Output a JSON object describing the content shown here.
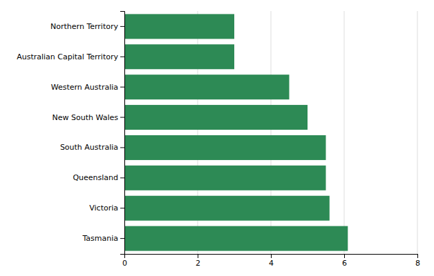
{
  "chart_data": {
    "type": "bar",
    "orientation": "horizontal",
    "categories": [
      "Tasmania",
      "Victoria",
      "Queensland",
      "South Australia",
      "New South Wales",
      "Western Australia",
      "Australian Capital Territory",
      "Northern Territory"
    ],
    "values": [
      6.1,
      5.6,
      5.5,
      5.5,
      5.0,
      4.5,
      3.0,
      3.0
    ],
    "color": "#2d8a55",
    "xlim": [
      0,
      8
    ],
    "xticks": [
      0,
      2,
      4,
      6,
      8
    ],
    "grid": true
  }
}
